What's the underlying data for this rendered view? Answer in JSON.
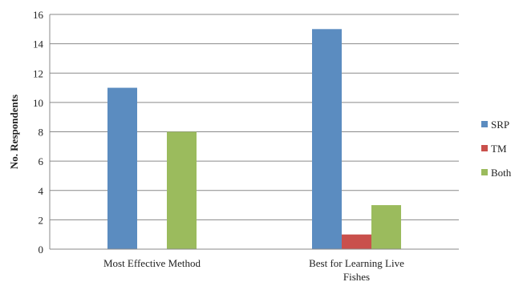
{
  "chart_data": {
    "type": "bar",
    "categories": [
      "Most Effective Method",
      "Best for Learning Live Fishes"
    ],
    "category_label_lines": [
      [
        "Most Effective Method"
      ],
      [
        "Best for Learning Live",
        "Fishes"
      ]
    ],
    "series": [
      {
        "name": "SRP",
        "values": [
          11,
          15
        ],
        "color": "#5b8cc0"
      },
      {
        "name": "TM",
        "values": [
          0,
          1
        ],
        "color": "#c9504c"
      },
      {
        "name": "Both",
        "values": [
          8,
          3
        ],
        "color": "#9bbb5d"
      }
    ],
    "ylabel": "No. Respondents",
    "xlabel": "",
    "title": "",
    "ylim": [
      0,
      16
    ],
    "yticks": [
      0,
      2,
      4,
      6,
      8,
      10,
      12,
      14,
      16
    ],
    "grid": true,
    "legend_position": "right"
  }
}
